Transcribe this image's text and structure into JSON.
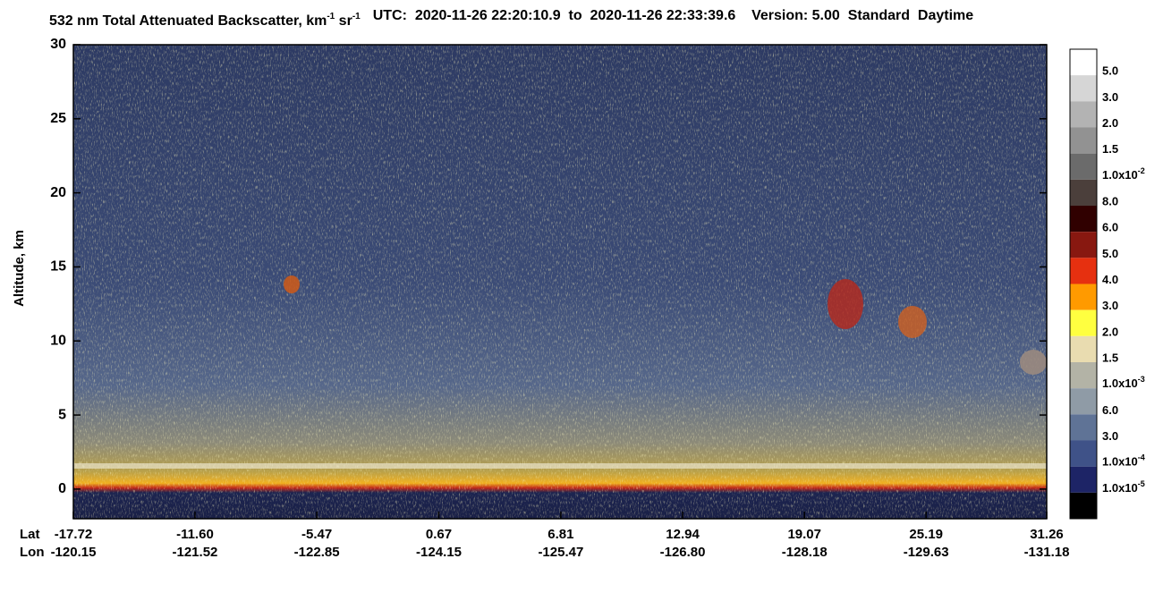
{
  "chart_data": {
    "type": "heatmap",
    "title_parts": [
      "532 nm Total Attenuated Backscatter, km",
      "-1",
      " sr",
      "-1"
    ],
    "subtitle": "UTC:  2020-11-26 22:20:10.9  to  2020-11-26 22:33:39.6    Version: 5.00  Standard  Daytime",
    "ylabel": "Altitude, km",
    "ylim": [
      -2,
      30
    ],
    "yticks": [
      0,
      5,
      10,
      15,
      20,
      25,
      30
    ],
    "x_row_labels": [
      "Lat",
      "Lon"
    ],
    "xlim": [
      -17.72,
      31.26
    ],
    "xticks": [
      -17.72,
      -11.6,
      -5.47,
      0.67,
      6.81,
      12.94,
      19.07,
      25.19,
      31.26
    ],
    "xtick_labels": [
      "-17.72",
      "-11.60",
      "-5.47",
      "0.67",
      "6.81",
      "12.94",
      "19.07",
      "25.19",
      "31.26"
    ],
    "lon": [
      -120.15,
      -121.52,
      -122.85,
      -124.15,
      -125.47,
      {
        "value": -126.8,
        "label": "-126.80"
      },
      -128.18,
      -129.63,
      -131.18
    ],
    "colorbar": {
      "colors": [
        "#ffffff",
        "#d6d6d6",
        "#b3b3b3",
        "#929292",
        "#6b6b6b",
        "#4b3f3b",
        "#300000",
        "#881810",
        "#e63010",
        "#ff9a00",
        "#ffff40",
        "#e9dcb0",
        "#b3b3a6",
        "#8f9ba6",
        "#5f7396",
        "#3f5288",
        "#1d2466",
        "#000000"
      ],
      "labels": [
        "5.0",
        "3.0",
        "2.0",
        "1.5",
        {
          "text": "1.0x10",
          "sup": "-2"
        },
        "8.0",
        "6.0",
        "5.0",
        "4.0",
        "3.0",
        "2.0",
        "1.5",
        {
          "text": "1.0x10",
          "sup": "-3"
        },
        "6.0",
        "3.0",
        {
          "text": "1.0x10",
          "sup": "-4"
        },
        {
          "text": "1.0x10",
          "sup": "-5"
        }
      ]
    }
  }
}
